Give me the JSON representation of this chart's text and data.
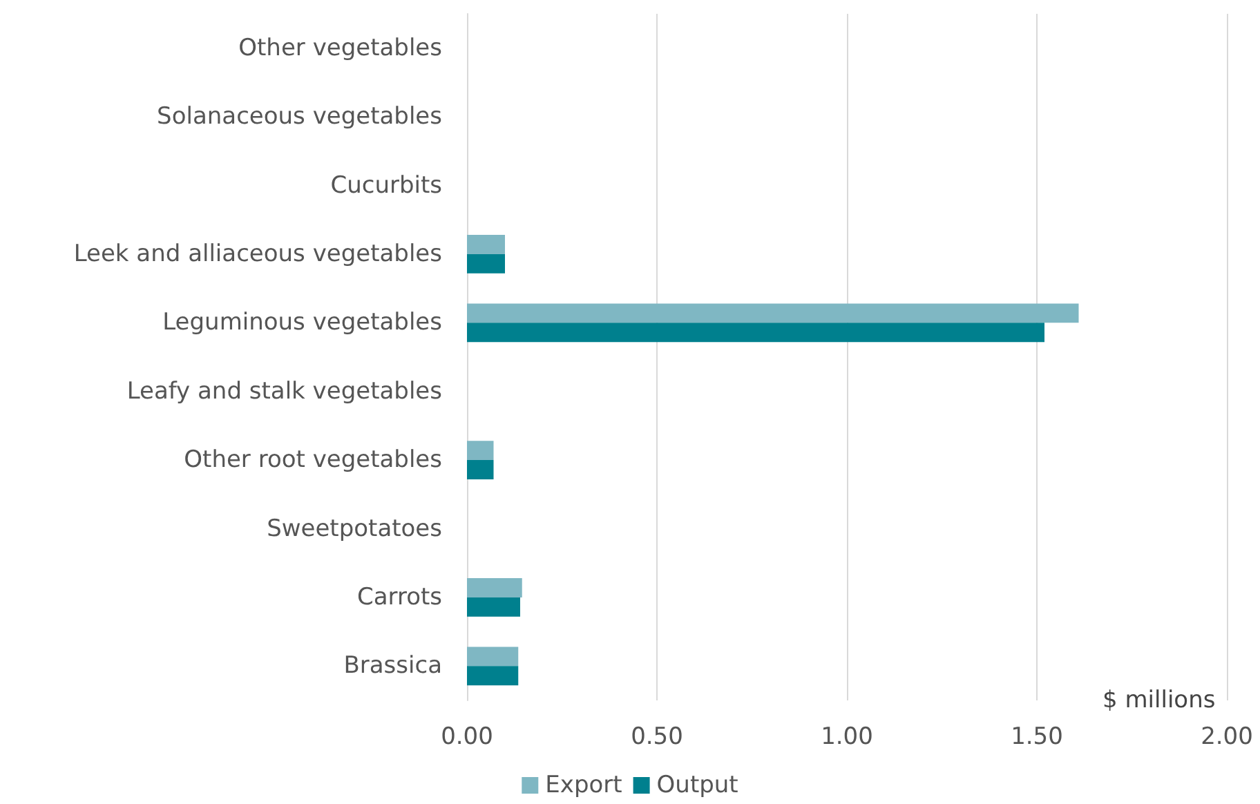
{
  "chart_data": {
    "type": "bar",
    "orientation": "horizontal",
    "xlabel": "$ millions",
    "categories": [
      "Other vegetables",
      "Solanaceous vegetables",
      "Cucurbits",
      "Leek and alliaceous vegetables",
      "Leguminous vegetables",
      "Leafy and stalk vegetables",
      "Other root vegetables",
      "Sweetpotatoes",
      "Carrots",
      "Brassica"
    ],
    "series": [
      {
        "name": "Export",
        "color": "#7fb7c3",
        "values": [
          null,
          null,
          null,
          0.1,
          1.61,
          null,
          0.07,
          null,
          0.145,
          0.135
        ]
      },
      {
        "name": "Output",
        "color": "#00808e",
        "values": [
          null,
          null,
          null,
          0.1,
          1.52,
          null,
          0.07,
          null,
          0.14,
          0.135
        ]
      }
    ],
    "xlim": [
      0,
      2
    ],
    "xticks": [
      {
        "value": 0,
        "label": "0.00"
      },
      {
        "value": 0.5,
        "label": "0.50"
      },
      {
        "value": 1,
        "label": "1.00"
      },
      {
        "value": 1.5,
        "label": "1.50"
      },
      {
        "value": 2,
        "label": "2.00"
      }
    ],
    "grid": "x",
    "legend": "bottom"
  }
}
